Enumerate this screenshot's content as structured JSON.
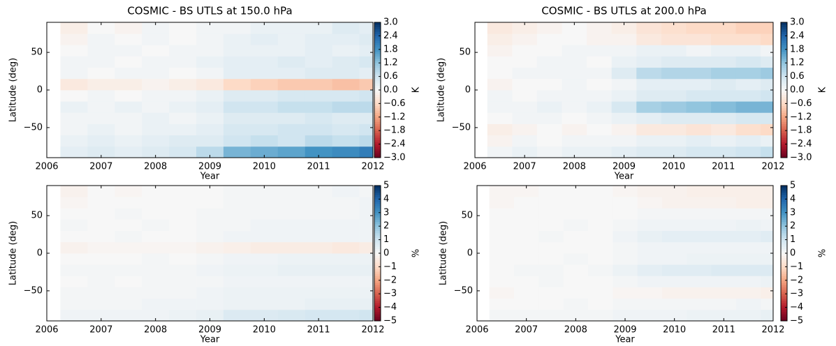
{
  "chart_data": [
    {
      "type": "heatmap",
      "title": "COSMIC - BS UTLS at 150.0 hPa",
      "xlabel": "Year",
      "ylabel": "Latitude (deg)",
      "x_bins": [
        2006.25,
        2006.75,
        2007.25,
        2007.75,
        2008.25,
        2008.75,
        2009.25,
        2009.75,
        2010.25,
        2010.75,
        2011.25,
        2011.75,
        2012
      ],
      "y_bins": [
        -90,
        -75,
        -60,
        -45,
        -30,
        -15,
        0,
        15,
        30,
        45,
        60,
        75,
        90
      ],
      "values": [
        [
          0.3,
          0.4,
          0.3,
          0.4,
          0.5,
          0.8,
          1.4,
          1.5,
          1.6,
          1.8,
          1.9,
          2.1
        ],
        [
          0.2,
          0.3,
          0.2,
          0.3,
          0.4,
          0.4,
          0.6,
          0.7,
          0.6,
          0.8,
          0.7,
          0.8
        ],
        [
          0.1,
          0.2,
          0.1,
          0.2,
          0.2,
          0.3,
          0.5,
          0.5,
          0.6,
          0.6,
          0.5,
          0.6
        ],
        [
          0.1,
          0.1,
          0.1,
          0.2,
          0.1,
          0.2,
          0.4,
          0.4,
          0.4,
          0.5,
          0.4,
          0.4
        ],
        [
          0.2,
          0.1,
          0.2,
          0.1,
          0.2,
          0.3,
          0.6,
          0.6,
          0.7,
          0.7,
          0.8,
          0.8
        ],
        [
          0.0,
          0.1,
          0.0,
          0.1,
          0.1,
          0.2,
          0.4,
          0.4,
          0.5,
          0.5,
          0.5,
          0.6
        ],
        [
          -0.3,
          -0.2,
          -0.2,
          -0.1,
          -0.2,
          -0.3,
          -0.6,
          -0.7,
          -0.8,
          -0.8,
          -0.9,
          -0.8
        ],
        [
          0.1,
          0.0,
          0.1,
          0.1,
          0.0,
          0.1,
          0.3,
          0.3,
          0.3,
          0.4,
          0.4,
          0.3
        ],
        [
          0.1,
          0.1,
          0.0,
          0.1,
          0.1,
          0.2,
          0.3,
          0.3,
          0.4,
          0.3,
          0.4,
          0.5
        ],
        [
          0.0,
          0.1,
          0.1,
          0.0,
          0.1,
          0.1,
          0.2,
          0.2,
          0.2,
          0.3,
          0.2,
          0.3
        ],
        [
          -0.1,
          0.1,
          0.0,
          0.1,
          0.0,
          0.1,
          0.2,
          0.3,
          0.2,
          0.3,
          0.3,
          0.4
        ],
        [
          -0.2,
          0.0,
          -0.1,
          0.1,
          0.0,
          0.1,
          0.1,
          0.2,
          0.2,
          0.2,
          0.4,
          0.3
        ]
      ],
      "xlim": [
        2006,
        2012
      ],
      "xticks": [
        2006,
        2007,
        2008,
        2009,
        2010,
        2011,
        2012
      ],
      "ylim": [
        -90,
        90
      ],
      "yticks": [
        {
          "value": -50,
          "label": "−50"
        },
        0,
        50
      ],
      "colormap": "RdBu_r",
      "clabel": "K",
      "clim": [
        -3,
        3
      ],
      "cticks": [
        {
          "value": 3,
          "label": "3.0"
        },
        2.4,
        1.8,
        1.2,
        0.6,
        {
          "value": 0,
          "label": "0.0"
        },
        {
          "value": -0.6,
          "label": "−0.6"
        },
        {
          "value": -1.2,
          "label": "−1.2"
        },
        {
          "value": -1.8,
          "label": "−1.8"
        },
        {
          "value": -2.4,
          "label": "−2.4"
        },
        {
          "value": -3,
          "label": "−3.0"
        }
      ]
    },
    {
      "type": "heatmap",
      "title": "COSMIC - BS UTLS at 200.0 hPa",
      "xlabel": "Year",
      "ylabel": "Latitude (deg)",
      "x_bins": [
        2006.25,
        2006.75,
        2007.25,
        2007.75,
        2008.25,
        2008.75,
        2009.25,
        2009.75,
        2010.25,
        2010.75,
        2011.25,
        2011.75,
        2012
      ],
      "y_bins": [
        -90,
        -75,
        -60,
        -45,
        -30,
        -15,
        0,
        15,
        30,
        45,
        60,
        75,
        90
      ],
      "values": [
        [
          0.1,
          0.2,
          0.1,
          0.2,
          0.2,
          0.3,
          0.4,
          0.4,
          0.5,
          0.5,
          0.6,
          0.7
        ],
        [
          -0.1,
          0.1,
          0.0,
          0.1,
          0.1,
          0.1,
          0.2,
          0.2,
          0.3,
          0.2,
          0.3,
          0.2
        ],
        [
          -0.2,
          -0.1,
          0.0,
          -0.1,
          0.0,
          -0.1,
          -0.3,
          -0.3,
          -0.4,
          -0.3,
          -0.5,
          -0.6
        ],
        [
          0.0,
          0.1,
          0.1,
          0.0,
          0.1,
          0.2,
          0.3,
          0.4,
          0.4,
          0.4,
          0.5,
          0.5
        ],
        [
          0.1,
          0.1,
          0.2,
          0.1,
          0.2,
          0.5,
          1.0,
          1.1,
          1.2,
          1.3,
          1.4,
          1.4
        ],
        [
          0.1,
          0.0,
          0.1,
          0.1,
          0.1,
          0.2,
          0.4,
          0.4,
          0.5,
          0.5,
          0.5,
          0.6
        ],
        [
          -0.1,
          0.0,
          0.0,
          0.1,
          0.0,
          0.1,
          0.3,
          0.3,
          0.3,
          0.4,
          0.3,
          0.4
        ],
        [
          0.0,
          0.1,
          0.1,
          0.1,
          0.1,
          0.4,
          0.8,
          0.9,
          0.9,
          1.0,
          1.0,
          1.1
        ],
        [
          0.0,
          0.0,
          0.1,
          0.1,
          0.0,
          0.2,
          0.3,
          0.4,
          0.4,
          0.4,
          0.5,
          0.4
        ],
        [
          -0.1,
          0.0,
          0.0,
          0.1,
          0.1,
          0.1,
          0.2,
          0.2,
          0.1,
          0.2,
          0.2,
          0.1
        ],
        [
          -0.2,
          -0.1,
          0.0,
          0.0,
          -0.1,
          -0.1,
          -0.3,
          -0.4,
          -0.4,
          -0.5,
          -0.5,
          -0.6
        ],
        [
          -0.3,
          -0.2,
          -0.1,
          0.0,
          -0.1,
          -0.2,
          -0.4,
          -0.5,
          -0.6,
          -0.6,
          -0.7,
          -0.7
        ]
      ],
      "xlim": [
        2006,
        2012
      ],
      "xticks": [
        2006,
        2007,
        2008,
        2009,
        2010,
        2011,
        2012
      ],
      "ylim": [
        -90,
        90
      ],
      "yticks": [
        {
          "value": -50,
          "label": "−50"
        },
        0,
        50
      ],
      "colormap": "RdBu_r",
      "clabel": "K",
      "clim": [
        -3,
        3
      ],
      "cticks": [
        {
          "value": 3,
          "label": "3.0"
        },
        2.4,
        1.8,
        1.2,
        0.6,
        {
          "value": 0,
          "label": "0.0"
        },
        {
          "value": -0.6,
          "label": "−0.6"
        },
        {
          "value": -1.2,
          "label": "−1.2"
        },
        {
          "value": -1.8,
          "label": "−1.8"
        },
        {
          "value": -2.4,
          "label": "−2.4"
        },
        {
          "value": -3,
          "label": "−3.0"
        }
      ]
    },
    {
      "type": "heatmap",
      "xlabel": "Year",
      "ylabel": "Latitude (deg)",
      "x_bins": [
        2006.25,
        2006.75,
        2007.25,
        2007.75,
        2008.25,
        2008.75,
        2009.25,
        2009.75,
        2010.25,
        2010.75,
        2011.25,
        2011.75,
        2012
      ],
      "y_bins": [
        -90,
        -75,
        -60,
        -45,
        -30,
        -15,
        0,
        15,
        30,
        45,
        60,
        75,
        90
      ],
      "values": [
        [
          0.2,
          0.2,
          0.2,
          0.2,
          0.3,
          0.4,
          0.7,
          0.7,
          0.8,
          0.9,
          0.9,
          1.0
        ],
        [
          0.1,
          0.1,
          0.1,
          0.2,
          0.2,
          0.2,
          0.3,
          0.3,
          0.3,
          0.4,
          0.4,
          0.4
        ],
        [
          0.1,
          0.1,
          0.1,
          0.1,
          0.1,
          0.2,
          0.3,
          0.3,
          0.3,
          0.3,
          0.3,
          0.3
        ],
        [
          0.0,
          0.1,
          0.0,
          0.1,
          0.1,
          0.1,
          0.2,
          0.2,
          0.2,
          0.2,
          0.2,
          0.2
        ],
        [
          0.1,
          0.1,
          0.1,
          0.1,
          0.1,
          0.2,
          0.3,
          0.3,
          0.4,
          0.4,
          0.4,
          0.4
        ],
        [
          0.0,
          0.0,
          0.0,
          0.1,
          0.0,
          0.1,
          0.2,
          0.2,
          0.3,
          0.3,
          0.3,
          0.3
        ],
        [
          -0.2,
          -0.1,
          -0.1,
          -0.1,
          -0.1,
          -0.2,
          -0.3,
          -0.4,
          -0.4,
          -0.4,
          -0.5,
          -0.4
        ],
        [
          0.0,
          0.0,
          0.1,
          0.0,
          0.0,
          0.1,
          0.2,
          0.2,
          0.2,
          0.2,
          0.2,
          0.2
        ],
        [
          0.1,
          0.0,
          0.0,
          0.1,
          0.0,
          0.1,
          0.1,
          0.2,
          0.2,
          0.2,
          0.2,
          0.2
        ],
        [
          0.0,
          0.0,
          0.1,
          0.0,
          0.0,
          0.1,
          0.1,
          0.1,
          0.1,
          0.1,
          0.1,
          0.2
        ],
        [
          -0.1,
          0.0,
          0.0,
          0.0,
          0.0,
          0.0,
          0.1,
          0.1,
          0.1,
          0.1,
          0.1,
          0.2
        ],
        [
          -0.2,
          0.0,
          -0.1,
          0.0,
          0.0,
          0.0,
          0.1,
          0.1,
          0.1,
          0.1,
          0.2,
          0.1
        ]
      ],
      "xlim": [
        2006,
        2012
      ],
      "xticks": [
        2006,
        2007,
        2008,
        2009,
        2010,
        2011,
        2012
      ],
      "ylim": [
        -90,
        90
      ],
      "yticks": [
        {
          "value": -50,
          "label": "−50"
        },
        0,
        50
      ],
      "colormap": "RdBu_r",
      "clabel": "%",
      "clim": [
        -5,
        5
      ],
      "cticks": [
        5,
        4,
        3,
        2,
        1,
        0,
        {
          "value": -1,
          "label": "−1"
        },
        {
          "value": -2,
          "label": "−2"
        },
        {
          "value": -3,
          "label": "−3"
        },
        {
          "value": -4,
          "label": "−4"
        },
        {
          "value": -5,
          "label": "−5"
        }
      ]
    },
    {
      "type": "heatmap",
      "xlabel": "Year",
      "ylabel": "Latitude (deg)",
      "x_bins": [
        2006.25,
        2006.75,
        2007.25,
        2007.75,
        2008.25,
        2008.75,
        2009.25,
        2009.75,
        2010.25,
        2010.75,
        2011.25,
        2011.75,
        2012
      ],
      "y_bins": [
        -90,
        -75,
        -60,
        -45,
        -30,
        -15,
        0,
        15,
        30,
        45,
        60,
        75,
        90
      ],
      "values": [
        [
          0.1,
          0.1,
          0.1,
          0.1,
          0.1,
          0.2,
          0.2,
          0.2,
          0.3,
          0.3,
          0.3,
          0.4
        ],
        [
          0.0,
          0.0,
          0.0,
          0.1,
          0.0,
          0.1,
          0.1,
          0.1,
          0.1,
          0.1,
          0.2,
          0.1
        ],
        [
          -0.1,
          0.0,
          0.0,
          0.0,
          0.0,
          -0.1,
          -0.1,
          -0.2,
          -0.2,
          -0.2,
          -0.2,
          -0.3
        ],
        [
          0.0,
          0.0,
          0.1,
          0.0,
          0.0,
          0.1,
          0.2,
          0.2,
          0.2,
          0.2,
          0.2,
          0.3
        ],
        [
          0.0,
          0.1,
          0.1,
          0.0,
          0.1,
          0.3,
          0.5,
          0.6,
          0.6,
          0.7,
          0.7,
          0.7
        ],
        [
          0.0,
          0.0,
          0.0,
          0.1,
          0.0,
          0.1,
          0.2,
          0.2,
          0.3,
          0.3,
          0.3,
          0.3
        ],
        [
          0.0,
          0.0,
          0.0,
          0.0,
          0.0,
          0.1,
          0.2,
          0.2,
          0.2,
          0.2,
          0.2,
          0.2
        ],
        [
          0.0,
          0.0,
          0.1,
          0.0,
          0.0,
          0.2,
          0.4,
          0.5,
          0.5,
          0.5,
          0.5,
          0.6
        ],
        [
          0.0,
          0.0,
          0.0,
          0.1,
          0.0,
          0.1,
          0.2,
          0.2,
          0.2,
          0.2,
          0.3,
          0.2
        ],
        [
          0.0,
          0.0,
          0.0,
          0.0,
          0.0,
          0.0,
          0.1,
          0.1,
          0.1,
          0.1,
          0.1,
          0.1
        ],
        [
          -0.1,
          0.0,
          0.0,
          0.0,
          0.0,
          0.0,
          -0.1,
          -0.2,
          -0.2,
          -0.2,
          -0.3,
          -0.3
        ],
        [
          -0.1,
          -0.1,
          0.0,
          0.0,
          0.0,
          -0.1,
          -0.2,
          -0.2,
          -0.3,
          -0.3,
          -0.3,
          -0.3
        ]
      ],
      "xlim": [
        2006,
        2012
      ],
      "xticks": [
        2006,
        2007,
        2008,
        2009,
        2010,
        2011,
        2012
      ],
      "ylim": [
        -90,
        90
      ],
      "yticks": [
        {
          "value": -50,
          "label": "−50"
        },
        0,
        50
      ],
      "colormap": "RdBu_r",
      "clabel": "%",
      "clim": [
        -5,
        5
      ],
      "cticks": [
        5,
        4,
        3,
        2,
        1,
        0,
        {
          "value": -1,
          "label": "−1"
        },
        {
          "value": -2,
          "label": "−2"
        },
        {
          "value": -3,
          "label": "−3"
        },
        {
          "value": -4,
          "label": "−4"
        },
        {
          "value": -5,
          "label": "−5"
        }
      ]
    }
  ]
}
